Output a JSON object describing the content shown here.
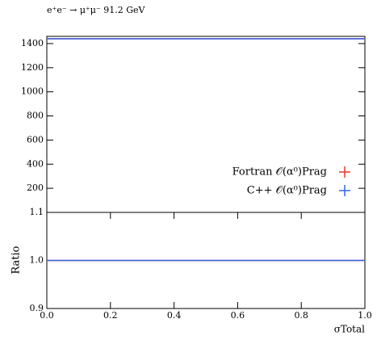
{
  "chart_data": [
    {
      "type": "histogram",
      "title": "e⁺e⁻ → μ⁺μ⁻ 91.2 GeV",
      "bins": [
        0,
        1
      ],
      "series": [
        {
          "name": "Fortran 𝒪(α⁰)Prag",
          "color": "#e8392a",
          "values": [
            1440
          ]
        },
        {
          "name": "C++ 𝒪(α⁰)Prag",
          "color": "#3366ee",
          "values": [
            1440
          ]
        }
      ],
      "xlim": [
        0,
        1
      ],
      "ylim": [
        0,
        1460
      ],
      "yticks": [
        200,
        400,
        600,
        800,
        1000,
        1200,
        1400
      ],
      "legend": "lower right"
    },
    {
      "type": "histogram",
      "ylabel": "Ratio",
      "xlabel": "σTotal",
      "bins": [
        0,
        1
      ],
      "series": [
        {
          "color": "#e8392a",
          "values": [
            1.0
          ]
        },
        {
          "color": "#3366ee",
          "values": [
            1.0
          ]
        }
      ],
      "xlim": [
        0,
        1
      ],
      "ylim": [
        0.9,
        1.1
      ],
      "yticks": [
        0.9,
        {
          "value": 1.0,
          "label": "1.0"
        },
        1.1
      ],
      "xticks": [
        {
          "value": 0,
          "label": "0.0"
        },
        0.2,
        0.4,
        0.6,
        0.8,
        {
          "value": 1,
          "label": "1.0"
        }
      ]
    }
  ]
}
